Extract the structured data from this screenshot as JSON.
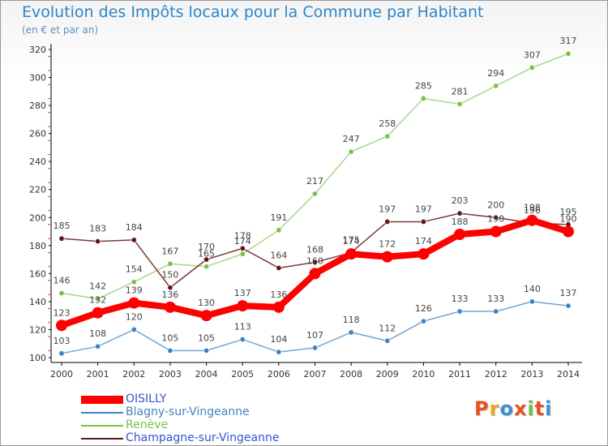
{
  "header": {
    "title": "Evolution des Impôts locaux pour la Commune par Habitant",
    "subtitle": "(en € et par an)"
  },
  "logo": {
    "text": "Proxiti",
    "colors": [
      "#e8501e",
      "#f2a31b",
      "#3c8fd6",
      "#e8501e",
      "#6cc04a",
      "#e8501e",
      "#3c8fd6"
    ]
  },
  "colors": {
    "axis": "#000000",
    "grid": "#dddddd",
    "tick_label": "#333333",
    "point_label": "#444444"
  },
  "chart_data": {
    "type": "line",
    "title": "Evolution des Impôts locaux pour la Commune par Habitant",
    "subtitle": "(en € et par an)",
    "xlabel": "",
    "ylabel": "",
    "x": [
      2000,
      2001,
      2002,
      2003,
      2004,
      2005,
      2006,
      2007,
      2008,
      2009,
      2010,
      2011,
      2012,
      2013,
      2014
    ],
    "ylim": [
      100,
      320
    ],
    "yticks": [
      100,
      120,
      140,
      160,
      180,
      200,
      220,
      240,
      260,
      280,
      300,
      320
    ],
    "grid": false,
    "legend_position": "bottom-left",
    "series": [
      {
        "name": "OISILLY",
        "color": "#ff0000",
        "point_color": "#ff0000",
        "legend_color": "#3355cc",
        "bold": true,
        "values": [
          123,
          132,
          139,
          136,
          130,
          137,
          136,
          160,
          174,
          172,
          174,
          188,
          190,
          198,
          190
        ]
      },
      {
        "name": "Blagny-sur-Vingeanne",
        "color": "#6fa6d6",
        "point_color": "#3f83c6",
        "legend_color": "#3f83c6",
        "bold": false,
        "values": [
          103,
          108,
          120,
          105,
          105,
          113,
          104,
          107,
          118,
          112,
          126,
          133,
          133,
          140,
          137
        ]
      },
      {
        "name": "Renève",
        "color": "#a3d98a",
        "point_color": "#7ac144",
        "legend_color": "#7ac144",
        "bold": false,
        "values": [
          146,
          142,
          154,
          167,
          165,
          174,
          191,
          217,
          247,
          258,
          285,
          281,
          294,
          307,
          317
        ]
      },
      {
        "name": "Champagne-sur-Vingeanne",
        "color": "#7a3a3a",
        "point_color": "#5e1818",
        "legend_color": "#3355cc",
        "bold": false,
        "values": [
          185,
          183,
          184,
          150,
          170,
          178,
          164,
          168,
          175,
          197,
          197,
          203,
          200,
          196,
          195
        ]
      }
    ]
  }
}
